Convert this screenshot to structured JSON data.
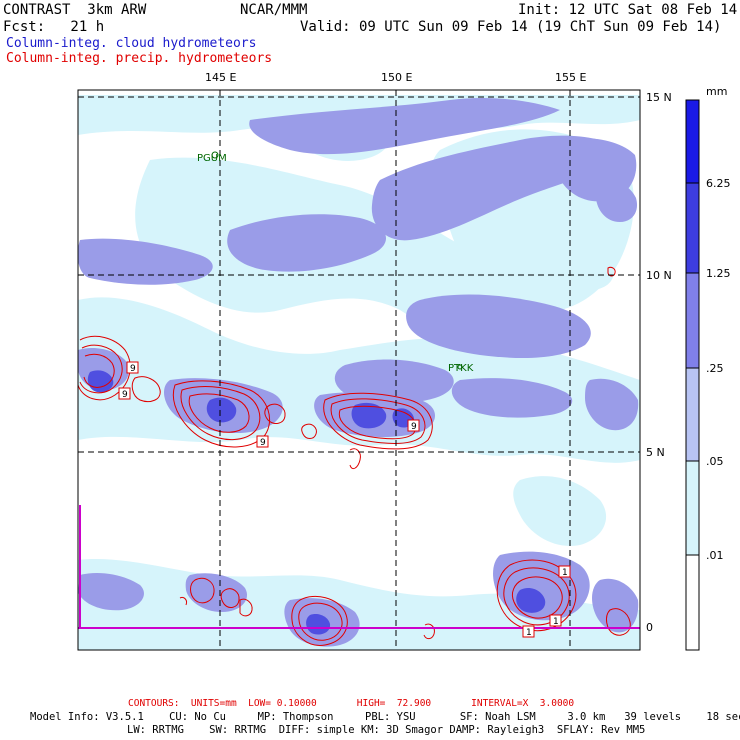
{
  "header": {
    "model": "CONTRAST  3km ARW",
    "org": "NCAR/MMM",
    "init": "Init: 12 UTC Sat 08 Feb 14",
    "fcst": "Fcst:   21 h",
    "valid": "Valid: 09 UTC Sun 09 Feb 14 (19 ChT Sun 09 Feb 14)",
    "field1": "Column-integ. cloud hydrometeors",
    "field2": "Column-integ. precip. hydrometeors"
  },
  "axes": {
    "lon_labels": [
      "145 E",
      "150 E",
      "155 E"
    ],
    "lat_labels": [
      "15 N",
      "10 N",
      "5 N",
      "0"
    ]
  },
  "stations": [
    "PGUM",
    "PTKK"
  ],
  "contour_labels": [
    "9",
    "9",
    "9",
    "9",
    "1",
    "1",
    "1"
  ],
  "colorbar": {
    "unit": "mm",
    "levels": [
      "6.25",
      "1.25",
      ".25",
      ".05",
      ".01"
    ],
    "colors": [
      "#1a1ae6",
      "#3d3de0",
      "#8080ea",
      "#b8c4f4",
      "#d6f4fb",
      "#ffffff"
    ]
  },
  "footer": {
    "contours": "CONTOURS:  UNITS=mm  LOW= 0.10000       HIGH=  72.900       INTERVAL=X  3.0000",
    "info1": "Model Info: V3.5.1    CU: No Cu     MP: Thompson     PBL: YSU       SF: Noah LSM     3.0 km   39 levels    18 sec",
    "info2": "LW: RRTMG    SW: RRTMG  DIFF: simple KM: 3D Smagor DAMP: Rayleigh3  SFLAY: Rev MM5"
  }
}
